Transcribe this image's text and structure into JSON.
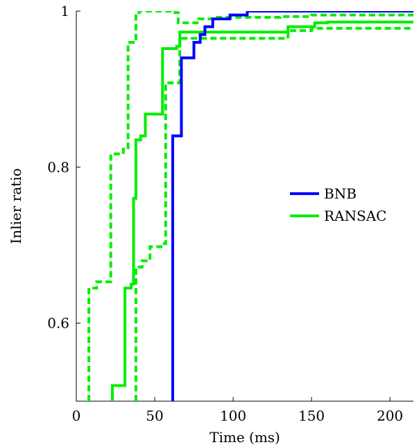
{
  "chart_data": {
    "type": "line",
    "xlabel": "Time (ms)",
    "ylabel": "Inlier ratio",
    "xlim": [
      0,
      215
    ],
    "ylim": [
      0.5,
      1.0
    ],
    "xticks": [
      0,
      50,
      100,
      150,
      200
    ],
    "yticks": [
      0.6,
      0.8,
      1.0
    ],
    "ytick_labels": [
      "0.6",
      "0.8",
      "1"
    ],
    "grid": false,
    "legend": {
      "position": "center-right",
      "entries": [
        "BNB",
        "RANSAC"
      ]
    },
    "series": [
      {
        "name": "BNB",
        "color": "#0000ff",
        "style": "solid",
        "points": [
          [
            61.5,
            0.5
          ],
          [
            61.5,
            0.84
          ],
          [
            66,
            0.84
          ],
          [
            66,
            0.84
          ],
          [
            67,
            0.84
          ],
          [
            67,
            0.94
          ],
          [
            75,
            0.94
          ],
          [
            75,
            0.96
          ],
          [
            79,
            0.96
          ],
          [
            79,
            0.97
          ],
          [
            82,
            0.97
          ],
          [
            82,
            0.98
          ],
          [
            87,
            0.98
          ],
          [
            87,
            0.99
          ],
          [
            98,
            0.99
          ],
          [
            98,
            0.995
          ],
          [
            109,
            0.995
          ],
          [
            109,
            1.0
          ],
          [
            215,
            1.0
          ]
        ]
      },
      {
        "name": "RANSAC",
        "color": "#00ee00",
        "style": "solid",
        "points": [
          [
            23,
            0.5
          ],
          [
            23,
            0.52
          ],
          [
            31,
            0.52
          ],
          [
            31,
            0.645
          ],
          [
            35,
            0.645
          ],
          [
            35,
            0.65
          ],
          [
            36.5,
            0.65
          ],
          [
            36.5,
            0.76
          ],
          [
            38,
            0.76
          ],
          [
            38,
            0.835
          ],
          [
            41,
            0.835
          ],
          [
            41,
            0.84
          ],
          [
            44,
            0.84
          ],
          [
            44,
            0.868
          ],
          [
            55,
            0.868
          ],
          [
            55,
            0.952
          ],
          [
            64,
            0.952
          ],
          [
            64,
            0.955
          ],
          [
            66,
            0.955
          ],
          [
            66,
            0.973
          ],
          [
            135,
            0.973
          ],
          [
            135,
            0.98
          ],
          [
            152,
            0.98
          ],
          [
            152,
            0.985
          ],
          [
            160,
            0.985
          ],
          [
            160,
            0.986
          ],
          [
            215,
            0.986
          ]
        ]
      },
      {
        "name": "",
        "color": "#00ee00",
        "style": "dashed",
        "points": [
          [
            8,
            0.5
          ],
          [
            8,
            0.645
          ],
          [
            13,
            0.645
          ],
          [
            13,
            0.653
          ],
          [
            22,
            0.653
          ],
          [
            22,
            0.817
          ],
          [
            30,
            0.817
          ],
          [
            30,
            0.825
          ],
          [
            33,
            0.825
          ],
          [
            33,
            0.96
          ],
          [
            38,
            0.96
          ],
          [
            38,
            0.998
          ],
          [
            40,
            0.998
          ],
          [
            40,
            1.0
          ],
          [
            63,
            1.0
          ],
          [
            63,
            0.998
          ],
          [
            65,
            0.998
          ],
          [
            65,
            0.985
          ],
          [
            78,
            0.985
          ],
          [
            78,
            0.99
          ],
          [
            90,
            0.99
          ],
          [
            90,
            0.992
          ],
          [
            130,
            0.992
          ],
          [
            130,
            0.993
          ],
          [
            150,
            0.993
          ],
          [
            150,
            0.995
          ],
          [
            215,
            0.995
          ]
        ]
      },
      {
        "name": "",
        "color": "#00ee00",
        "style": "dashed",
        "points": [
          [
            38,
            0.5
          ],
          [
            38,
            0.672
          ],
          [
            42,
            0.672
          ],
          [
            42,
            0.68
          ],
          [
            47,
            0.68
          ],
          [
            47,
            0.698
          ],
          [
            55,
            0.698
          ],
          [
            55,
            0.702
          ],
          [
            57,
            0.702
          ],
          [
            57,
            0.908
          ],
          [
            66,
            0.908
          ],
          [
            66,
            0.965
          ],
          [
            135,
            0.965
          ],
          [
            135,
            0.975
          ],
          [
            150,
            0.975
          ],
          [
            150,
            0.978
          ],
          [
            215,
            0.978
          ]
        ]
      }
    ]
  }
}
